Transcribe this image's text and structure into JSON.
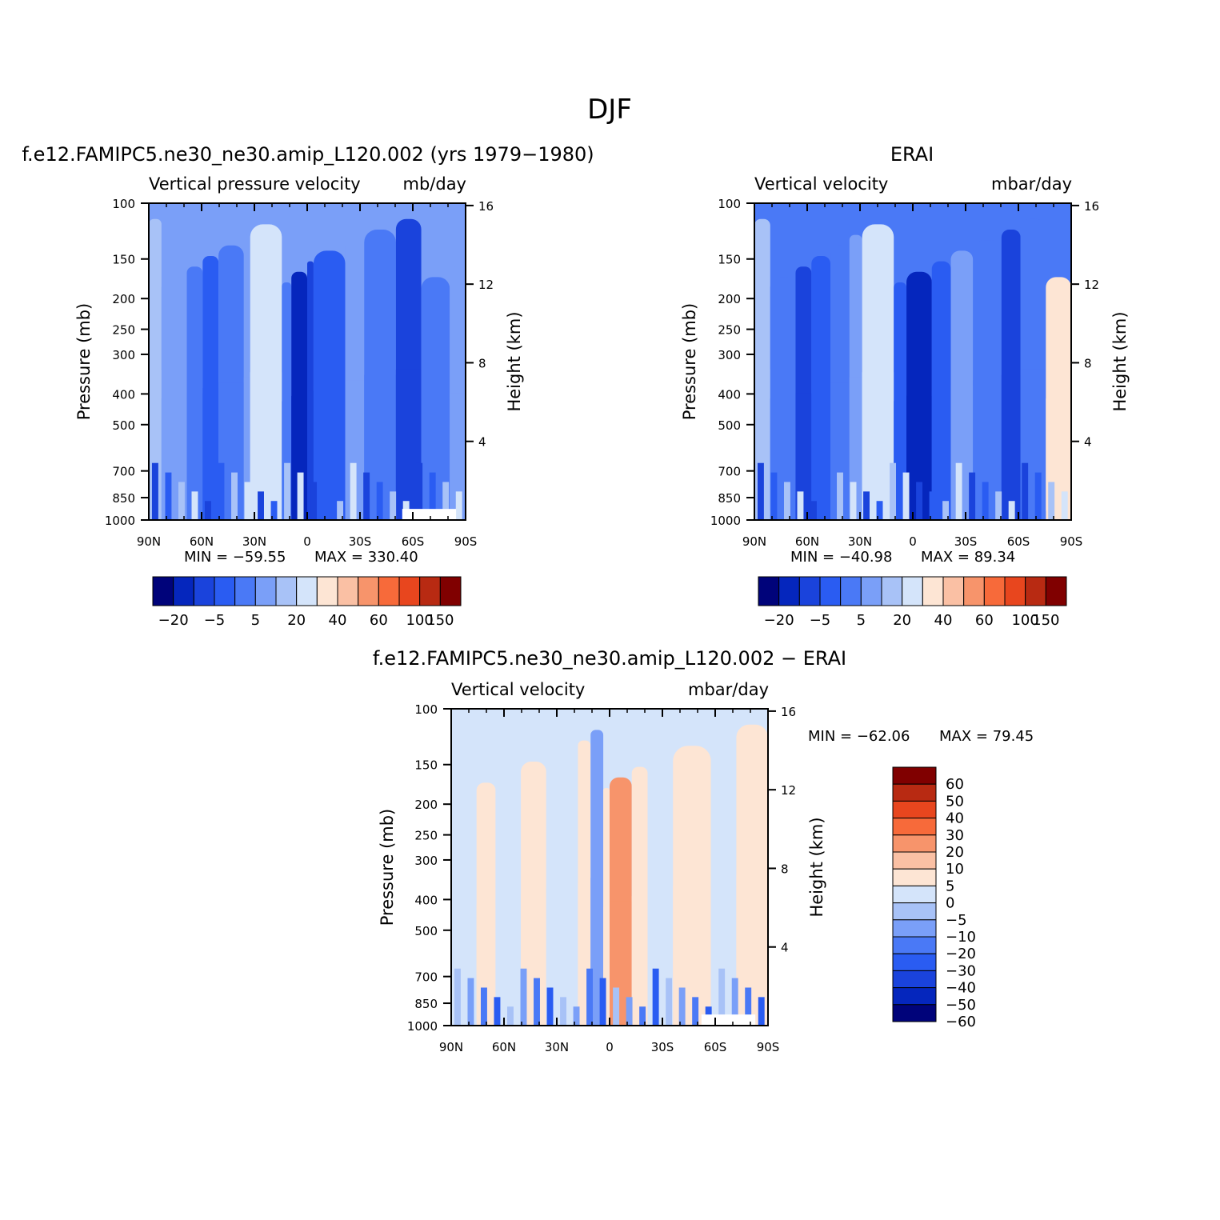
{
  "figure": {
    "title": "DJF"
  },
  "colors": {
    "abs_colorbar": [
      "#00037a",
      "#0526bd",
      "#1a43dc",
      "#2a5cf2",
      "#4a79f6",
      "#7a9ff8",
      "#a8c2f7",
      "#d4e4fa",
      "#fde5d4",
      "#fac0a4",
      "#f7946b",
      "#f76a3a",
      "#e8461e",
      "#b82a12",
      "#800000"
    ],
    "diff_colorbar": [
      "#800000",
      "#b82a12",
      "#e8461e",
      "#f76a3a",
      "#f7946b",
      "#fac0a4",
      "#fde5d4",
      "#d4e4fa",
      "#a8c2f7",
      "#7a9ff8",
      "#4a79f6",
      "#2a5cf2",
      "#1a43dc",
      "#0526bd",
      "#00037a"
    ]
  },
  "chart_data": [
    {
      "type": "heatmap",
      "title": "f.e12.FAMIPC5.ne30_ne30.amip_L120.002 (yrs 1979-1980)",
      "variable": "Vertical pressure velocity",
      "units": "mb/day",
      "ylabel": "Pressure (mb)",
      "y2label": "Height (km)",
      "x_ticks": [
        "90N",
        "60N",
        "30N",
        "0",
        "30S",
        "60S",
        "90S"
      ],
      "y_ticks": [
        100,
        150,
        200,
        250,
        300,
        400,
        500,
        700,
        850,
        1000
      ],
      "y2_ticks": [
        16,
        12,
        8,
        4
      ],
      "yscale": "log",
      "min_label": "MIN = -59.55",
      "max_label": "MAX = 330.40",
      "colorbar_labels": [
        "-20",
        "-5",
        "5",
        "20",
        "40",
        "60",
        "100",
        "150"
      ],
      "colorbar_levels": 14
    },
    {
      "type": "heatmap",
      "title": "ERAI",
      "variable": "Vertical velocity",
      "units": "mbar/day",
      "ylabel": "Pressure (mb)",
      "y2label": "Height (km)",
      "x_ticks": [
        "90N",
        "60N",
        "30N",
        "0",
        "30S",
        "60S",
        "90S"
      ],
      "y_ticks": [
        100,
        150,
        200,
        250,
        300,
        400,
        500,
        700,
        850,
        1000
      ],
      "y2_ticks": [
        16,
        12,
        8,
        4
      ],
      "yscale": "log",
      "min_label": "MIN = -40.98",
      "max_label": "MAX = 89.34",
      "colorbar_labels": [
        "-20",
        "-5",
        "5",
        "20",
        "40",
        "60",
        "100",
        "150"
      ],
      "colorbar_levels": 14
    },
    {
      "type": "heatmap",
      "title": "f.e12.FAMIPC5.ne30_ne30.amip_L120.002 - ERAI",
      "variable": "Vertical velocity",
      "units": "mbar/day",
      "ylabel": "Pressure (mb)",
      "y2label": "Height (km)",
      "x_ticks": [
        "90N",
        "60N",
        "30N",
        "0",
        "30S",
        "60S",
        "90S"
      ],
      "y_ticks": [
        100,
        150,
        200,
        250,
        300,
        400,
        500,
        700,
        850,
        1000
      ],
      "y2_ticks": [
        16,
        12,
        8,
        4
      ],
      "yscale": "log",
      "min_label": "MIN = -62.06",
      "max_label": "MAX = 79.45",
      "colorbar_labels": [
        "60",
        "50",
        "40",
        "30",
        "20",
        "10",
        "5",
        "0",
        "-5",
        "-10",
        "-20",
        "-30",
        "-40",
        "-50",
        "-60"
      ],
      "colorbar_levels": 14
    }
  ]
}
